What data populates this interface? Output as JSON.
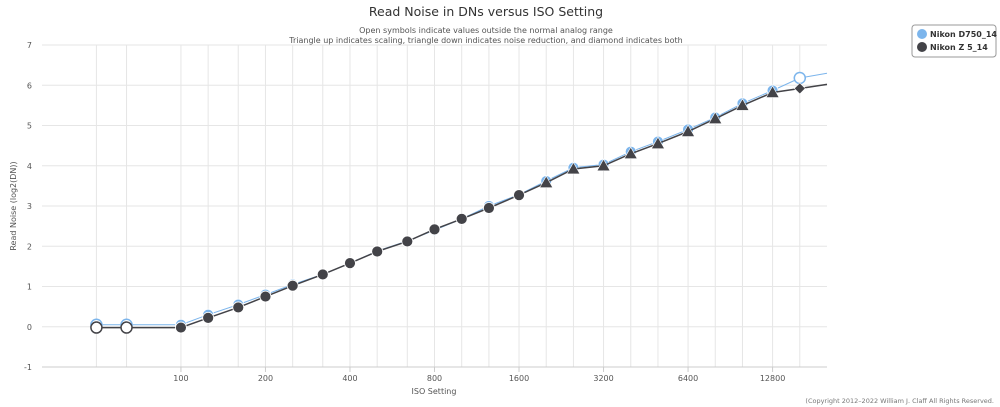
{
  "chart_data": {
    "type": "line",
    "title": "Read Noise in DNs versus ISO Setting",
    "subtitle_lines": [
      "Open symbols indicate values outside the normal analog range",
      "Triangle up indicates scaling, triangle down indicates noise reduction, and diamond indicates both"
    ],
    "xlabel": "ISO Setting",
    "ylabel": "Read Noise (log2(DN))",
    "x_scale": "log2",
    "xlim": [
      32,
      20000
    ],
    "ylim": [
      -1,
      7
    ],
    "x_ticks": [
      {
        "value": 100,
        "label": "100"
      },
      {
        "value": 200,
        "label": "200"
      },
      {
        "value": 400,
        "label": "400"
      },
      {
        "value": 800,
        "label": "800"
      },
      {
        "value": 1600,
        "label": "1600"
      },
      {
        "value": 3200,
        "label": "3200"
      },
      {
        "value": 6400,
        "label": "6400"
      },
      {
        "value": 12800,
        "label": "12800"
      }
    ],
    "y_ticks": [
      -1,
      0,
      1,
      2,
      3,
      4,
      5,
      6,
      7
    ],
    "grid": true,
    "legend_position": "top-right",
    "series": [
      {
        "name": "Nikon D750_14",
        "color": "#7cb5ec",
        "points": [
          {
            "x": 50,
            "y": 0.05,
            "marker": "circle-open"
          },
          {
            "x": 64,
            "y": 0.05,
            "marker": "circle-open"
          },
          {
            "x": 100,
            "y": 0.05,
            "marker": "circle"
          },
          {
            "x": 125,
            "y": 0.3,
            "marker": "circle"
          },
          {
            "x": 160,
            "y": 0.55,
            "marker": "circle"
          },
          {
            "x": 200,
            "y": 0.8,
            "marker": "circle"
          },
          {
            "x": 250,
            "y": 1.05,
            "marker": "circle"
          },
          {
            "x": 320,
            "y": 1.3,
            "marker": "circle"
          },
          {
            "x": 400,
            "y": 1.58,
            "marker": "circle"
          },
          {
            "x": 500,
            "y": 1.88,
            "marker": "circle"
          },
          {
            "x": 640,
            "y": 2.13,
            "marker": "circle"
          },
          {
            "x": 800,
            "y": 2.4,
            "marker": "circle"
          },
          {
            "x": 1000,
            "y": 2.68,
            "marker": "circle"
          },
          {
            "x": 1250,
            "y": 3.0,
            "marker": "circle"
          },
          {
            "x": 1600,
            "y": 3.28,
            "marker": "circle"
          },
          {
            "x": 2000,
            "y": 3.62,
            "marker": "circle"
          },
          {
            "x": 2500,
            "y": 3.95,
            "marker": "circle"
          },
          {
            "x": 3200,
            "y": 4.03,
            "marker": "circle"
          },
          {
            "x": 4000,
            "y": 4.35,
            "marker": "circle"
          },
          {
            "x": 5000,
            "y": 4.6,
            "marker": "circle"
          },
          {
            "x": 6400,
            "y": 4.9,
            "marker": "circle"
          },
          {
            "x": 8000,
            "y": 5.2,
            "marker": "circle"
          },
          {
            "x": 10000,
            "y": 5.55,
            "marker": "circle"
          },
          {
            "x": 12800,
            "y": 5.87,
            "marker": "circle"
          },
          {
            "x": 16000,
            "y": 6.18,
            "marker": "circle-open"
          },
          {
            "x": 20000,
            "y": 6.3,
            "marker": "none"
          }
        ]
      },
      {
        "name": "Nikon Z 5_14",
        "color": "#434348",
        "points": [
          {
            "x": 50,
            "y": -0.02,
            "marker": "circle-open"
          },
          {
            "x": 64,
            "y": -0.02,
            "marker": "circle-open"
          },
          {
            "x": 100,
            "y": -0.02,
            "marker": "circle"
          },
          {
            "x": 125,
            "y": 0.22,
            "marker": "circle"
          },
          {
            "x": 160,
            "y": 0.48,
            "marker": "circle"
          },
          {
            "x": 200,
            "y": 0.75,
            "marker": "circle"
          },
          {
            "x": 250,
            "y": 1.02,
            "marker": "circle"
          },
          {
            "x": 320,
            "y": 1.3,
            "marker": "circle"
          },
          {
            "x": 400,
            "y": 1.58,
            "marker": "circle"
          },
          {
            "x": 500,
            "y": 1.87,
            "marker": "circle"
          },
          {
            "x": 640,
            "y": 2.12,
            "marker": "circle"
          },
          {
            "x": 800,
            "y": 2.42,
            "marker": "circle"
          },
          {
            "x": 1000,
            "y": 2.68,
            "marker": "circle"
          },
          {
            "x": 1250,
            "y": 2.95,
            "marker": "circle"
          },
          {
            "x": 1600,
            "y": 3.27,
            "marker": "circle"
          },
          {
            "x": 2000,
            "y": 3.58,
            "marker": "triangle-up"
          },
          {
            "x": 2500,
            "y": 3.92,
            "marker": "triangle-up"
          },
          {
            "x": 3200,
            "y": 4.0,
            "marker": "triangle-up"
          },
          {
            "x": 4000,
            "y": 4.3,
            "marker": "triangle-up"
          },
          {
            "x": 5000,
            "y": 4.55,
            "marker": "triangle-up"
          },
          {
            "x": 6400,
            "y": 4.85,
            "marker": "triangle-up"
          },
          {
            "x": 8000,
            "y": 5.17,
            "marker": "triangle-up"
          },
          {
            "x": 10000,
            "y": 5.5,
            "marker": "triangle-up"
          },
          {
            "x": 12800,
            "y": 5.82,
            "marker": "triangle-up"
          },
          {
            "x": 16000,
            "y": 5.92,
            "marker": "diamond"
          },
          {
            "x": 20000,
            "y": 6.02,
            "marker": "none"
          }
        ]
      }
    ]
  },
  "credits": "(Copyright 2012–2022 William J. Claff All Rights Reserved."
}
